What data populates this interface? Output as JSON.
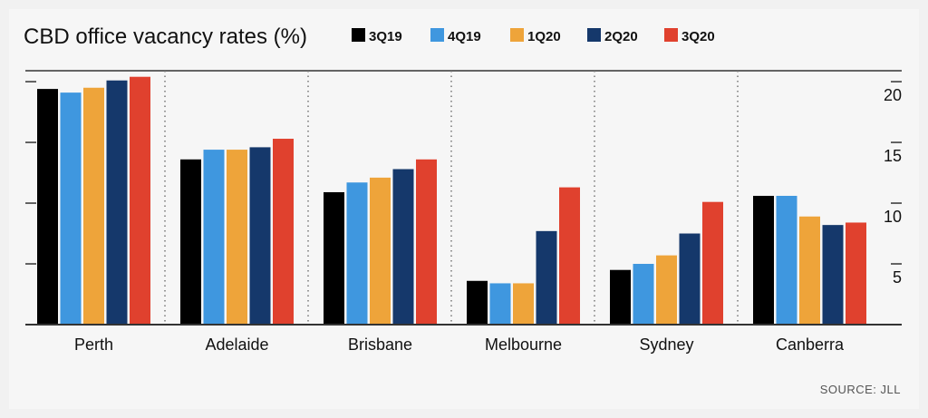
{
  "chart_data": {
    "type": "bar",
    "title": "CBD office vacancy rates (%)",
    "source": "SOURCE: JLL",
    "categories": [
      "Perth",
      "Adelaide",
      "Brisbane",
      "Melbourne",
      "Sydney",
      "Canberra"
    ],
    "series": [
      {
        "name": "3Q19",
        "color": "#000000",
        "values": [
          19.4,
          13.6,
          10.9,
          3.6,
          4.5,
          10.6
        ]
      },
      {
        "name": "4Q19",
        "color": "#3f97df",
        "values": [
          19.1,
          14.4,
          11.7,
          3.4,
          5.0,
          10.6
        ]
      },
      {
        "name": "1Q20",
        "color": "#eea43a",
        "values": [
          19.5,
          14.4,
          12.1,
          3.4,
          5.7,
          8.9
        ]
      },
      {
        "name": "2Q20",
        "color": "#15386b",
        "values": [
          20.1,
          14.6,
          12.8,
          7.7,
          7.5,
          8.2
        ]
      },
      {
        "name": "3Q20",
        "color": "#e0412e",
        "values": [
          20.4,
          15.3,
          13.6,
          11.3,
          10.1,
          8.4
        ]
      }
    ],
    "yticks": [
      5,
      10,
      15,
      20
    ],
    "ylim": [
      0,
      20.9
    ],
    "grid": true,
    "legend": "top"
  }
}
